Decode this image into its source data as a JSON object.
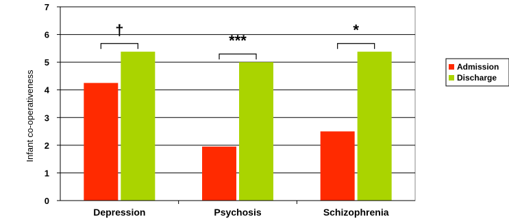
{
  "chart_data": {
    "type": "bar",
    "categories": [
      "Depression",
      "Psychosis",
      "Schizophrenia"
    ],
    "series": [
      {
        "name": "Admission",
        "values": [
          4.25,
          1.95,
          2.5
        ],
        "color": "#ff2a00"
      },
      {
        "name": "Discharge",
        "values": [
          5.38,
          5.0,
          5.38
        ],
        "color": "#aad400"
      }
    ],
    "ylabel": "Infant co-operativeness",
    "xlabel": "",
    "ylim": [
      0,
      7
    ],
    "yticks": [
      0,
      1,
      2,
      3,
      4,
      5,
      6,
      7
    ],
    "grid": true,
    "legend_position": "right",
    "significance": [
      "†",
      "***",
      "*"
    ]
  }
}
